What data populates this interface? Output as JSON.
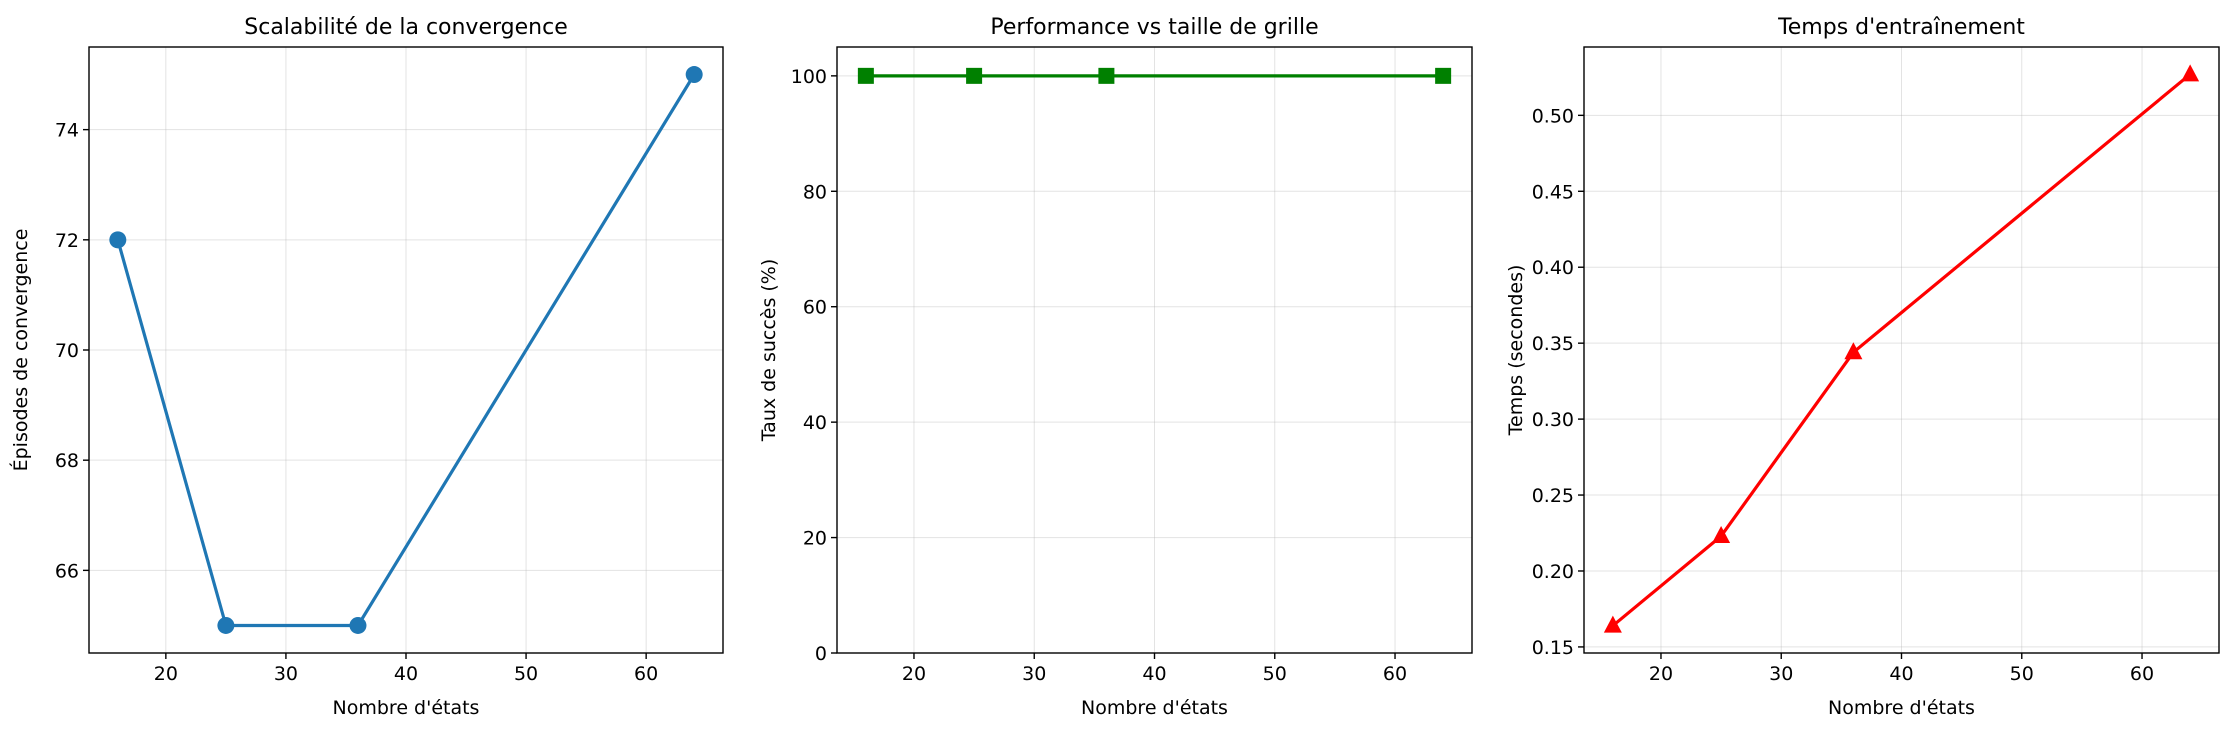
{
  "chart_data": [
    {
      "type": "line",
      "title": "Scalabilité de la convergence",
      "xlabel": "Nombre d'états",
      "ylabel": "Épisodes de convergence",
      "x": [
        16,
        25,
        36,
        64
      ],
      "series": [
        {
          "values": [
            72,
            65,
            65,
            75
          ],
          "color": "#1f77b4",
          "marker": "circle"
        }
      ],
      "xlim": [
        13.6,
        66.4
      ],
      "ylim": [
        64.5,
        75.5
      ],
      "xticks": [
        20,
        30,
        40,
        50,
        60
      ],
      "yticks": [
        66,
        68,
        70,
        72,
        74
      ],
      "grid": true
    },
    {
      "type": "line",
      "title": "Performance vs taille de grille",
      "xlabel": "Nombre d'états",
      "ylabel": "Taux de succès (%)",
      "x": [
        16,
        25,
        36,
        64
      ],
      "series": [
        {
          "values": [
            100,
            100,
            100,
            100
          ],
          "color": "#008000",
          "marker": "square"
        }
      ],
      "xlim": [
        13.6,
        66.4
      ],
      "ylim": [
        0,
        105
      ],
      "xticks": [
        20,
        30,
        40,
        50,
        60
      ],
      "yticks": [
        0,
        20,
        40,
        60,
        80,
        100
      ],
      "grid": true
    },
    {
      "type": "line",
      "title": "Temps d'entraînement",
      "xlabel": "Nombre d'états",
      "ylabel": "Temps (secondes)",
      "x": [
        16,
        25,
        36,
        64
      ],
      "series": [
        {
          "values": [
            0.164,
            0.223,
            0.344,
            0.527
          ],
          "color": "#ff0000",
          "marker": "triangle"
        }
      ],
      "xlim": [
        13.6,
        66.4
      ],
      "ylim": [
        0.146,
        0.545
      ],
      "xticks": [
        20,
        30,
        40,
        50,
        60
      ],
      "yticks": [
        0.15,
        0.2,
        0.25,
        0.3,
        0.35,
        0.4,
        0.45,
        0.5
      ],
      "ytick_labels": [
        "0.15",
        "0.20",
        "0.25",
        "0.30",
        "0.35",
        "0.40",
        "0.45",
        "0.50"
      ],
      "grid": true
    }
  ]
}
